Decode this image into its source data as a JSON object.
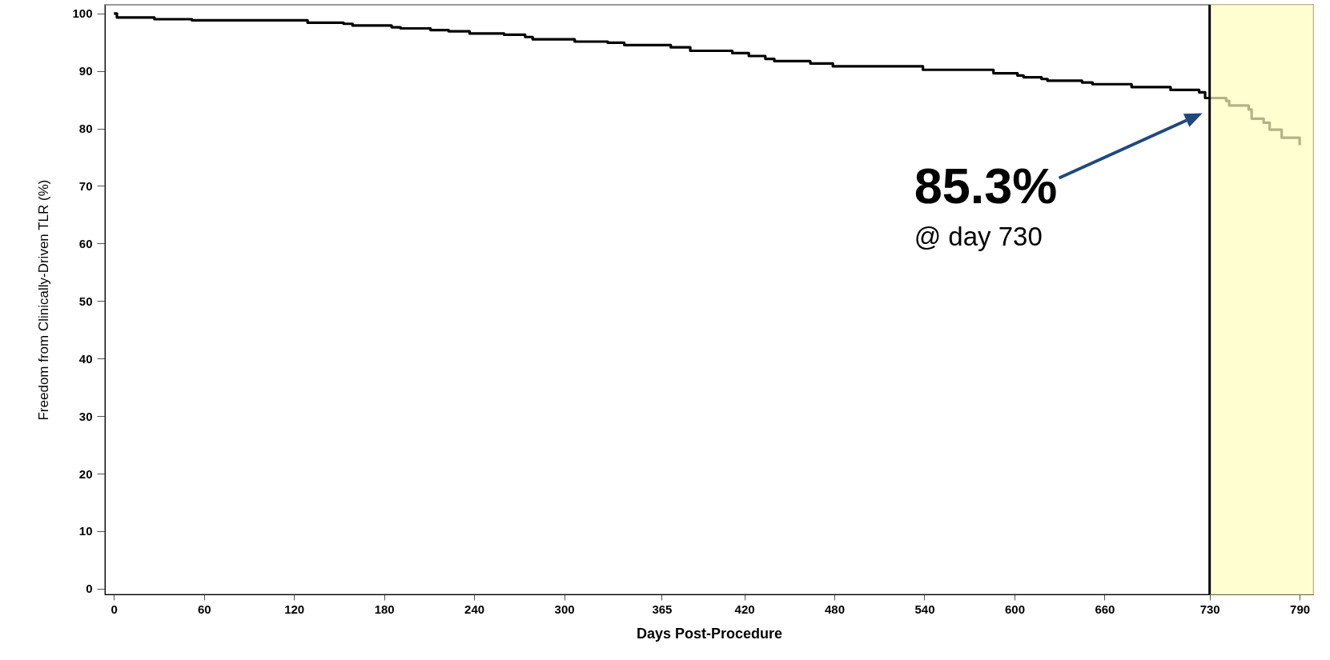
{
  "chart_data": {
    "type": "step",
    "xlabel": "Days Post-Procedure",
    "ylabel": "Freedom from Clinically-Driven TLR (%)",
    "series": [
      {
        "color": "#000000",
        "x": [
          0,
          2,
          27,
          52,
          129,
          153,
          159,
          185,
          191,
          211,
          223,
          237,
          260,
          274,
          279,
          307,
          329,
          340,
          371,
          384,
          412,
          423,
          434,
          440,
          464,
          479,
          539,
          586,
          602,
          606,
          618,
          622,
          645,
          652,
          678,
          704,
          723,
          727,
          730
        ],
        "values": [
          100,
          99.3,
          99.0,
          98.8,
          98.4,
          98.2,
          97.9,
          97.6,
          97.4,
          97.1,
          96.9,
          96.5,
          96.3,
          95.9,
          95.5,
          95.1,
          94.9,
          94.5,
          94.1,
          93.5,
          93.1,
          92.6,
          92.1,
          91.7,
          91.3,
          90.8,
          90.2,
          89.6,
          89.2,
          88.9,
          88.6,
          88.3,
          88.0,
          87.7,
          87.2,
          86.7,
          86.3,
          85.3,
          85.3
        ]
      },
      {
        "color": "#b5b287",
        "x": [
          730,
          741,
          743,
          756,
          758,
          766,
          770,
          778,
          790
        ],
        "values": [
          85.3,
          84.8,
          84.0,
          83.3,
          81.7,
          81.0,
          79.8,
          78.4,
          77.1
        ]
      }
    ],
    "xlim": [
      -6,
      799
    ],
    "ylim": [
      -1,
      101.5
    ],
    "xticks": [
      0,
      60,
      120,
      180,
      240,
      300,
      365,
      420,
      480,
      540,
      600,
      660,
      730,
      790
    ],
    "yticks": [
      0,
      10,
      20,
      30,
      40,
      50,
      60,
      70,
      80,
      90,
      100
    ],
    "ref_lines": [
      {
        "axis": "x",
        "value": 730,
        "color": "#000000"
      }
    ],
    "bands": [
      {
        "axis": "x",
        "from": 730,
        "to": 799,
        "color": "#fffed0"
      }
    ],
    "annotations": [
      "85.3%",
      "@ day 730"
    ],
    "grid": false
  }
}
